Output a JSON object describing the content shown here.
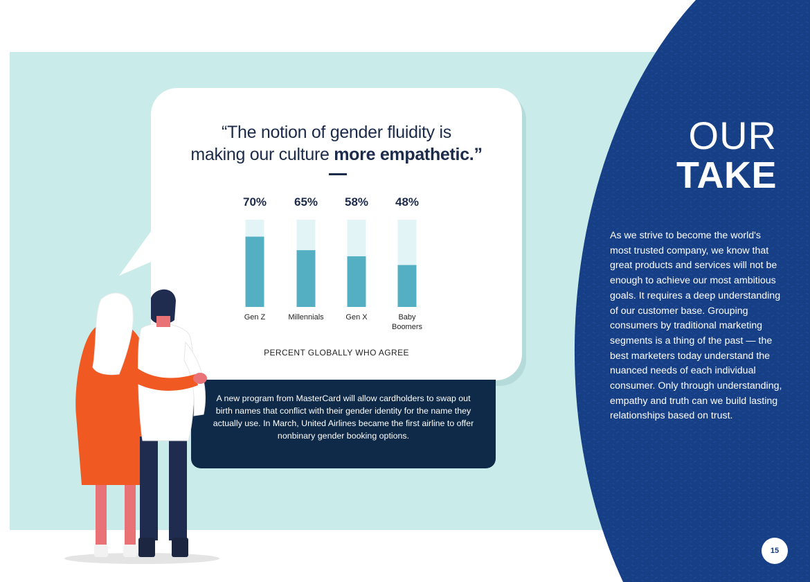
{
  "quote": {
    "line1": "“The notion of gender fluidity is",
    "line2_regular": "making our culture ",
    "line2_bold": "more empathetic.”"
  },
  "chart_data": {
    "type": "bar",
    "categories": [
      "Gen Z",
      "Millennials",
      "Gen X",
      "Baby Boomers"
    ],
    "category_lines": [
      [
        "Gen Z"
      ],
      [
        "Millennials"
      ],
      [
        "Gen X"
      ],
      [
        "Baby",
        "Boomers"
      ]
    ],
    "values": [
      70,
      65,
      58,
      48
    ],
    "value_labels": [
      "70%",
      "65%",
      "58%",
      "48%"
    ],
    "ylim": [
      0,
      100
    ],
    "xlabel": "PERCENT GLOBALLY WHO AGREE",
    "colors": {
      "bar": "#55afc3",
      "track": "#e2f4f6"
    }
  },
  "info_box": {
    "text": "A new program from MasterCard will allow cardholders to swap out birth names that conflict with their gender identity for the name they actually use. In March, United Airlines became the first airline to offer nonbinary gender booking options."
  },
  "our_take": {
    "title_line1": "OUR",
    "title_line2": "TAKE",
    "body": "As we strive to become the world's most trusted company, we know that great products and services will not be enough to achieve our most ambitious goals. It requires a deep understanding of our customer base. Grouping consumers by traditional marketing segments is a thing of the past — the best marketers today understand the nuanced needs of each individual consumer. Only through understanding, empathy and truth can we build lasting relationships based on trust."
  },
  "page_number": "15",
  "colors": {
    "navy_panel": "#163f86",
    "teal_backdrop": "#c9ebe9",
    "dark_box": "#0e2a48",
    "orange": "#f05a22"
  }
}
